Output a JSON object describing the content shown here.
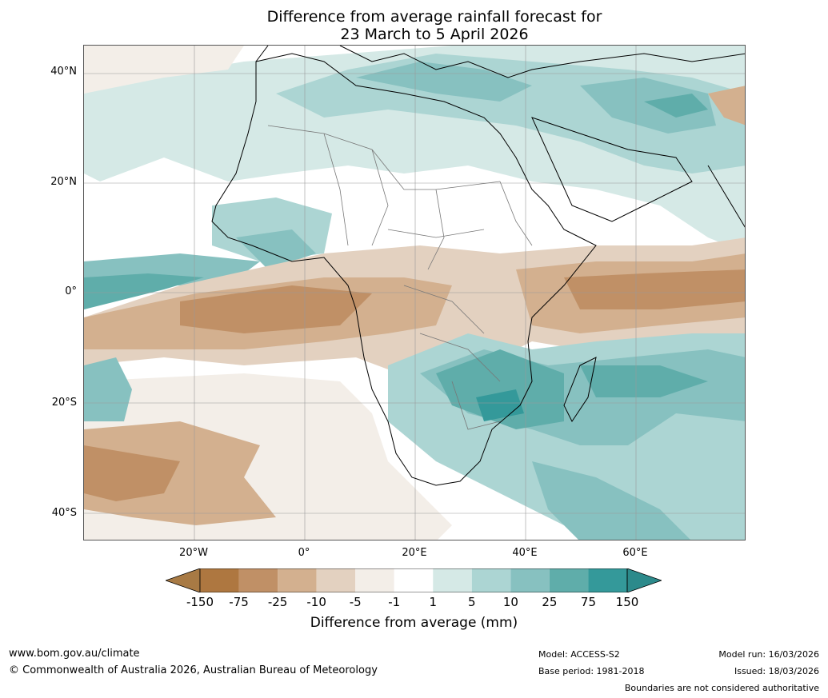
{
  "title": {
    "line1": "Difference from average rainfall forecast for",
    "line2": "23 March to 5 April 2026"
  },
  "map": {
    "lat_labels": [
      "40°N",
      "20°N",
      "0°",
      "20°S",
      "40°S"
    ],
    "lon_labels": [
      "20°W",
      "0°",
      "20°E",
      "40°E",
      "60°E"
    ]
  },
  "colorbar": {
    "tick_labels": [
      "-150",
      "-75",
      "-25",
      "-10",
      "-5",
      "-1",
      "1",
      "5",
      "10",
      "25",
      "75",
      "150"
    ],
    "colors": [
      "#a87a44",
      "#ae7740",
      "#c09066",
      "#d3b08f",
      "#e3d1c0",
      "#f3eee8",
      "#ffffff",
      "#d5e9e6",
      "#acd5d3",
      "#87c1c0",
      "#5fadaa",
      "#34999a",
      "#2c8a8b"
    ],
    "label": "Difference from average (mm)"
  },
  "footer": {
    "website": "www.bom.gov.au/climate",
    "copyright": "© Commonwealth of Australia 2026, Australian Bureau of Meteorology",
    "model": "Model: ACCESS-S2",
    "base_period": "Base period: 1981-2018",
    "model_run": "Model run: 16/03/2026",
    "issued": "Issued: 18/03/2026",
    "disclaimer": "Boundaries are not considered authoritative"
  }
}
